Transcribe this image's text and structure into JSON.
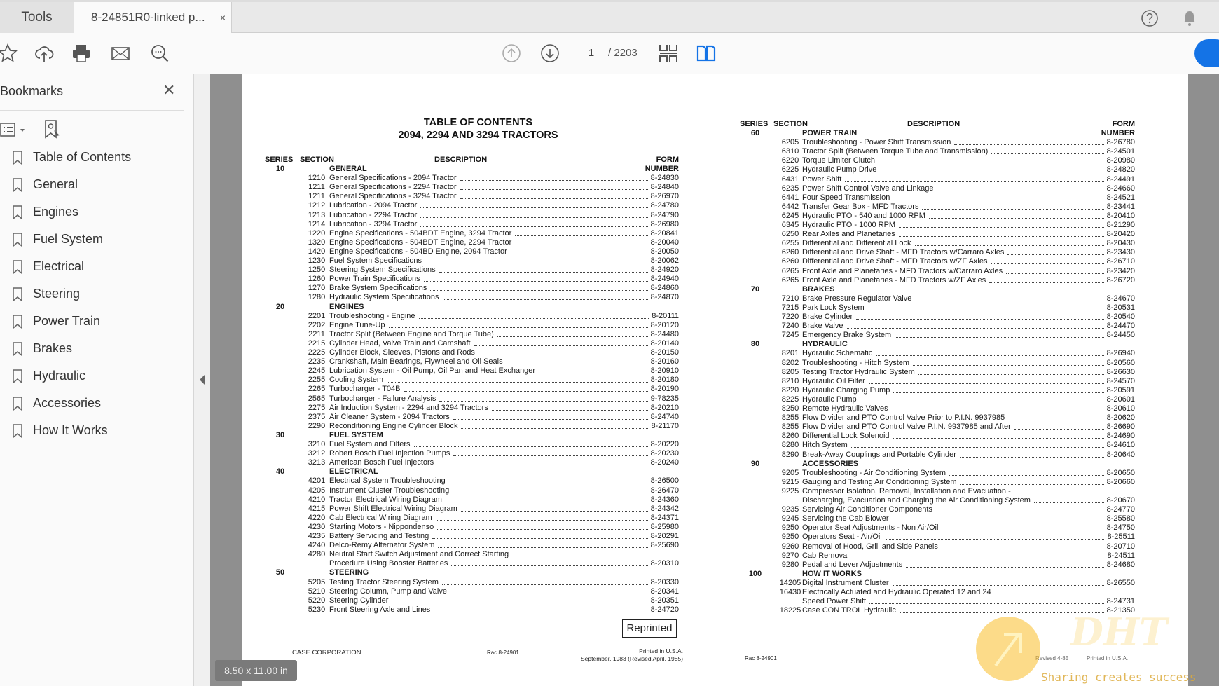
{
  "tabs": {
    "tools": "Tools",
    "document": "8-24851R0-linked p...",
    "close": "×"
  },
  "toolbar": {
    "page_current": "1",
    "page_total": "/ 2203"
  },
  "sidebar": {
    "title": "Bookmarks",
    "close": "✕",
    "items": [
      "Table of Contents",
      "General",
      "Engines",
      "Fuel System",
      "Electrical",
      "Steering",
      "Power Train",
      "Brakes",
      "Hydraulic",
      "Accessories",
      "How It Works"
    ]
  },
  "colors": {
    "accent": "#1473e6",
    "viewer_bg": "#8f8f8f"
  },
  "page1": {
    "title1": "TABLE OF CONTENTS",
    "title2": "2094, 2294 AND 3294 TRACTORS",
    "headers": {
      "series": "SERIES",
      "section": "SECTION",
      "description": "DESCRIPTION",
      "form": "FORM",
      "number": "NUMBER"
    },
    "groups": [
      {
        "series": "10",
        "title": "GENERAL",
        "entries": [
          {
            "section": "1210",
            "desc": "General Specifications - 2094 Tractor",
            "form": "8-24830"
          },
          {
            "section": "1211",
            "desc": "General Specifications - 2294 Tractor",
            "form": "8-24840"
          },
          {
            "section": "1211",
            "desc": "General Specifications - 3294 Tractor",
            "form": "8-26970"
          },
          {
            "section": "1212",
            "desc": "Lubrication - 2094 Tractor",
            "form": "8-24780"
          },
          {
            "section": "1213",
            "desc": "Lubrication - 2294 Tractor",
            "form": "8-24790"
          },
          {
            "section": "1214",
            "desc": "Lubrication - 3294 Tractor",
            "form": "8-26980"
          },
          {
            "section": "1220",
            "desc": "Engine Specifications - 504BDT Engine, 3294 Tractor",
            "form": "8-20841"
          },
          {
            "section": "1320",
            "desc": "Engine Specifications - 504BDT Engine, 2294 Tractor",
            "form": "8-20040"
          },
          {
            "section": "1420",
            "desc": "Engine Specifications - 504BD Engine, 2094 Tractor",
            "form": "8-20050"
          },
          {
            "section": "1230",
            "desc": "Fuel System Specifications",
            "form": "8-20062"
          },
          {
            "section": "1250",
            "desc": "Steering System Specifications",
            "form": "8-24920"
          },
          {
            "section": "1260",
            "desc": "Power Train Specifications",
            "form": "8-24940"
          },
          {
            "section": "1270",
            "desc": "Brake System Specifications",
            "form": "8-24860"
          },
          {
            "section": "1280",
            "desc": "Hydraulic System Specifications",
            "form": "8-24870"
          }
        ]
      },
      {
        "series": "20",
        "title": "ENGINES",
        "entries": [
          {
            "section": "2201",
            "desc": "Troubleshooting - Engine",
            "form": "8-20111"
          },
          {
            "section": "2202",
            "desc": "Engine Tune-Up",
            "form": "8-20120"
          },
          {
            "section": "2211",
            "desc": "Tractor Split (Between Engine and Torque Tube)",
            "form": "8-24480"
          },
          {
            "section": "2215",
            "desc": "Cylinder Head, Valve Train and Camshaft",
            "form": "8-20140"
          },
          {
            "section": "2225",
            "desc": "Cylinder Block, Sleeves, Pistons and Rods",
            "form": "8-20150"
          },
          {
            "section": "2235",
            "desc": "Crankshaft, Main Bearings, Flywheel and Oil Seals",
            "form": "8-20160"
          },
          {
            "section": "2245",
            "desc": "Lubrication System - Oil Pump, Oil Pan and Heat Exchanger",
            "form": "8-20910"
          },
          {
            "section": "2255",
            "desc": "Cooling System",
            "form": "8-20180"
          },
          {
            "section": "2265",
            "desc": "Turbocharger - T04B",
            "form": "8-20190"
          },
          {
            "section": "2565",
            "desc": "Turbocharger - Failure Analysis",
            "form": "9-78235"
          },
          {
            "section": "2275",
            "desc": "Air Induction System - 2294 and 3294 Tractors",
            "form": "8-20210"
          },
          {
            "section": "2375",
            "desc": "Air Cleaner System - 2094 Tractors",
            "form": "8-24740"
          },
          {
            "section": "2290",
            "desc": "Reconditioning Engine Cylinder Block",
            "form": "8-21170"
          }
        ]
      },
      {
        "series": "30",
        "title": "FUEL SYSTEM",
        "entries": [
          {
            "section": "3210",
            "desc": "Fuel System and Filters",
            "form": "8-20220"
          },
          {
            "section": "3212",
            "desc": "Robert Bosch Fuel Injection Pumps",
            "form": "8-20230"
          },
          {
            "section": "3213",
            "desc": "American Bosch Fuel Injectors",
            "form": "8-20240"
          }
        ]
      },
      {
        "series": "40",
        "title": "ELECTRICAL",
        "entries": [
          {
            "section": "4201",
            "desc": "Electrical System Troubleshooting",
            "form": "8-26500"
          },
          {
            "section": "4205",
            "desc": "Instrument Cluster Troubleshooting",
            "form": "8-26470"
          },
          {
            "section": "4210",
            "desc": "Tractor Electrical Wiring Diagram",
            "form": "8-24360"
          },
          {
            "section": "4215",
            "desc": "Power Shift Electrical Wiring Diagram",
            "form": "8-24342"
          },
          {
            "section": "4220",
            "desc": "Cab Electrical Wiring Diagram",
            "form": "8-24371"
          },
          {
            "section": "4230",
            "desc": "Starting Motors - Nippondenso",
            "form": "8-25980"
          },
          {
            "section": "4235",
            "desc": "Battery Servicing and Testing",
            "form": "8-20291"
          },
          {
            "section": "4240",
            "desc": "Delco-Remy Alternator System",
            "form": "8-25690"
          },
          {
            "section": "4280",
            "desc": "Neutral Start Switch Adjustment and Correct Starting",
            "desc2": "Procedure Using Booster Batteries",
            "form": "8-20310"
          }
        ]
      },
      {
        "series": "50",
        "title": "STEERING",
        "entries": [
          {
            "section": "5205",
            "desc": "Testing Tractor Steering System",
            "form": "8-20330"
          },
          {
            "section": "5210",
            "desc": "Steering Column, Pump and Valve",
            "form": "8-20341"
          },
          {
            "section": "5220",
            "desc": "Steering Cylinder",
            "form": "8-20351"
          },
          {
            "section": "5230",
            "desc": "Front Steering Axle and Lines",
            "form": "8-24720"
          }
        ]
      }
    ],
    "reprinted": "Reprinted",
    "footer": {
      "company": "CASE CORPORATION",
      "rac": "Rac 8-24901",
      "printed": "Printed in U.S.A.",
      "date": "September, 1983 (Revised April, 1985)"
    }
  },
  "page2": {
    "headers": {
      "series": "SERIES",
      "section": "SECTION",
      "description": "DESCRIPTION",
      "form": "FORM",
      "number": "NUMBER"
    },
    "groups": [
      {
        "series": "60",
        "title": "POWER TRAIN",
        "entries": [
          {
            "section": "6205",
            "desc": "Troubleshooting - Power Shift Transmission",
            "form": "8-26780"
          },
          {
            "section": "6310",
            "desc": "Tractor Split (Between Torque Tube and Transmission)",
            "form": "8-24501"
          },
          {
            "section": "6220",
            "desc": "Torque Limiter Clutch",
            "form": "8-20980"
          },
          {
            "section": "6225",
            "desc": "Hydraulic Pump Drive",
            "form": "8-24820"
          },
          {
            "section": "6431",
            "desc": "Power Shift",
            "form": "8-24491"
          },
          {
            "section": "6235",
            "desc": "Power Shift Control Valve and Linkage",
            "form": "8-24660"
          },
          {
            "section": "6441",
            "desc": "Four Speed Transmission",
            "form": "8-24521"
          },
          {
            "section": "6442",
            "desc": "Transfer Gear Box - MFD Tractors",
            "form": "8-23441"
          },
          {
            "section": "6245",
            "desc": "Hydraulic PTO - 540 and 1000 RPM",
            "form": "8-20410"
          },
          {
            "section": "6345",
            "desc": "Hydraulic PTO - 1000 RPM",
            "form": "8-21290"
          },
          {
            "section": "6250",
            "desc": "Rear Axles and Planetaries",
            "form": "8-20420"
          },
          {
            "section": "6255",
            "desc": "Differential and Differential Lock",
            "form": "8-20430"
          },
          {
            "section": "6260",
            "desc": "Differential and Drive Shaft - MFD Tractors w/Carraro Axles",
            "form": "8-23430"
          },
          {
            "section": "6260",
            "desc": "Differential and Drive Shaft - MFD Tractors w/ZF Axles",
            "form": "8-26710"
          },
          {
            "section": "6265",
            "desc": "Front Axle and Planetaries - MFD Tractors w/Carraro Axles",
            "form": "8-23420"
          },
          {
            "section": "6265",
            "desc": "Front Axle and Planetaries - MFD Tractors w/ZF Axles",
            "form": "8-26720"
          }
        ]
      },
      {
        "series": "70",
        "title": "BRAKES",
        "entries": [
          {
            "section": "7210",
            "desc": "Brake Pressure Regulator Valve",
            "form": "8-24670"
          },
          {
            "section": "7215",
            "desc": "Park Lock System",
            "form": "8-20531"
          },
          {
            "section": "7220",
            "desc": "Brake Cylinder",
            "form": "8-20540"
          },
          {
            "section": "7240",
            "desc": "Brake Valve",
            "form": "8-24470"
          },
          {
            "section": "7245",
            "desc": "Emergency Brake System",
            "form": "8-24450"
          }
        ]
      },
      {
        "series": "80",
        "title": "HYDRAULIC",
        "entries": [
          {
            "section": "8201",
            "desc": "Hydraulic Schematic",
            "form": "8-26940"
          },
          {
            "section": "8202",
            "desc": "Troubleshooting - Hitch System",
            "form": "8-20560"
          },
          {
            "section": "8205",
            "desc": "Testing Tractor Hydraulic System",
            "form": "8-26630"
          },
          {
            "section": "8210",
            "desc": "Hydraulic Oil Filter",
            "form": "8-24570"
          },
          {
            "section": "8220",
            "desc": "Hydraulic Charging Pump",
            "form": "8-20591"
          },
          {
            "section": "8225",
            "desc": "Hydraulic Pump",
            "form": "8-20601"
          },
          {
            "section": "8250",
            "desc": "Remote Hydraulic Valves",
            "form": "8-20610"
          },
          {
            "section": "8255",
            "desc": "Flow Divider and PTO Control Valve Prior to P.I.N. 9937985",
            "form": "8-20620"
          },
          {
            "section": "8255",
            "desc": "Flow Divider and PTO Control Valve P.I.N. 9937985 and After",
            "form": "8-26690"
          },
          {
            "section": "8260",
            "desc": "Differential Lock Solenoid",
            "form": "8-24690"
          },
          {
            "section": "8280",
            "desc": "Hitch System",
            "form": "8-24610"
          },
          {
            "section": "8290",
            "desc": "Break-Away Couplings and Portable Cylinder",
            "form": "8-20640"
          }
        ]
      },
      {
        "series": "90",
        "title": "ACCESSORIES",
        "entries": [
          {
            "section": "9205",
            "desc": "Troubleshooting - Air Conditioning System",
            "form": "8-20650"
          },
          {
            "section": "9215",
            "desc": "Gauging and Testing Air Conditioning System",
            "form": "8-20660"
          },
          {
            "section": "9225",
            "desc": "Compressor Isolation, Removal, Installation and Evacuation -",
            "desc2": "Discharging, Evacuation and Charging the Air Conditioning System",
            "form": "8-20670"
          },
          {
            "section": "9235",
            "desc": "Servicing Air Conditioner Components",
            "form": "8-24770"
          },
          {
            "section": "9245",
            "desc": "Servicing the Cab Blower",
            "form": "8-25580"
          },
          {
            "section": "9250",
            "desc": "Operator Seat Adjustments - Non Air/Oil",
            "form": "8-24750"
          },
          {
            "section": "9250",
            "desc": "Operators Seat - Air/Oil",
            "form": "8-25511"
          },
          {
            "section": "9260",
            "desc": "Removal of Hood, Grill and Side Panels",
            "form": "8-20710"
          },
          {
            "section": "9270",
            "desc": "Cab Removal",
            "form": "8-24511"
          },
          {
            "section": "9280",
            "desc": "Pedal and Lever Adjustments",
            "form": "8-24680"
          }
        ]
      },
      {
        "series": "100",
        "title": "HOW IT WORKS",
        "entries": [
          {
            "section": "14205",
            "desc": "Digital Instrument Cluster",
            "form": "8-26550"
          },
          {
            "section": "16430",
            "desc": "Electrically Actuated and Hydraulic Operated 12 and 24",
            "desc2": "Speed Power Shift",
            "form": "8-24731"
          },
          {
            "section": "18225",
            "desc": "Case CON TROL Hydraulic",
            "form": "8-21350"
          }
        ]
      }
    ],
    "footer": {
      "rac": "Rac 8-24901",
      "revised": "Revised 4-85",
      "printed": "Printed in U.S.A."
    }
  },
  "status": {
    "page_size": "8.50 x 11.00 in"
  },
  "watermark": {
    "logo": "DHT",
    "slogan": "Sharing creates success"
  }
}
